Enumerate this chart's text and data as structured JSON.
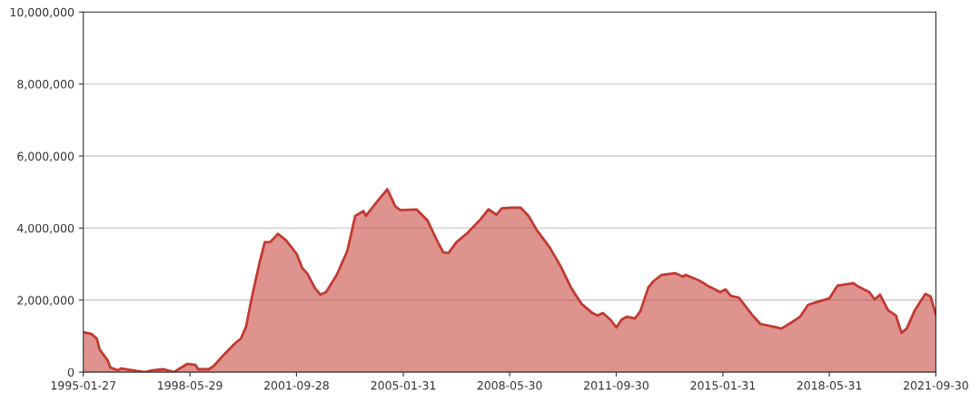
{
  "chart_data": {
    "type": "area",
    "x": [
      "1995-01-27",
      "1995-05",
      "1995-07",
      "1995-08",
      "1995-11",
      "1995-12",
      "1996-03",
      "1996-04",
      "1996-10",
      "1997-01",
      "1997-04",
      "1997-08",
      "1997-12",
      "1998-02",
      "1998-05",
      "1998-08",
      "1998-09",
      "1999-01",
      "1999-03",
      "1999-07",
      "1999-11",
      "2000-01",
      "2000-03",
      "2000-05",
      "2000-08",
      "2000-10",
      "2000-12",
      "2001-03",
      "2001-06",
      "2001-10",
      "2001-12",
      "2002-02",
      "2002-05",
      "2002-07",
      "2002-09",
      "2003-01",
      "2003-05",
      "2003-08",
      "2003-11",
      "2003-12",
      "2004-04",
      "2004-08",
      "2004-11",
      "2005-01",
      "2005-07",
      "2005-11",
      "2006-03",
      "2006-05",
      "2006-07",
      "2006-10",
      "2007-02",
      "2007-07",
      "2007-10",
      "2008-01",
      "2008-03",
      "2008-07",
      "2008-10",
      "2009-01",
      "2009-04",
      "2009-09",
      "2010-01",
      "2010-05",
      "2010-09",
      "2011-01",
      "2011-03",
      "2011-05",
      "2011-08",
      "2011-10",
      "2011-12",
      "2012-02",
      "2012-05",
      "2012-07",
      "2012-10",
      "2012-12",
      "2013-03",
      "2013-08",
      "2013-11",
      "2013-12",
      "2014-05",
      "2014-09",
      "2015-01",
      "2015-03",
      "2015-05",
      "2015-08",
      "2016-01",
      "2016-04",
      "2016-09",
      "2016-12",
      "2017-04",
      "2017-07",
      "2017-10",
      "2018-01",
      "2018-06",
      "2018-09",
      "2019-03",
      "2019-05",
      "2019-09",
      "2019-11",
      "2020-01",
      "2020-04",
      "2020-07",
      "2020-09",
      "2020-11",
      "2021-02",
      "2021-06",
      "2021-08",
      "2021-09-30"
    ],
    "series": [
      {
        "color": "#c23a31",
        "values": [
          1110000,
          1060000,
          930000,
          630000,
          330000,
          130000,
          50000,
          100000,
          30000,
          0,
          50000,
          80000,
          0,
          100000,
          230000,
          200000,
          80000,
          80000,
          180000,
          510000,
          810000,
          930000,
          1260000,
          2020000,
          3030000,
          3610000,
          3610000,
          3840000,
          3660000,
          3280000,
          2900000,
          2730000,
          2320000,
          2150000,
          2220000,
          2700000,
          3360000,
          4340000,
          4470000,
          4340000,
          4720000,
          5080000,
          4600000,
          4500000,
          4520000,
          4220000,
          3610000,
          3330000,
          3310000,
          3610000,
          3860000,
          4240000,
          4520000,
          4370000,
          4550000,
          4570000,
          4570000,
          4340000,
          3960000,
          3460000,
          2950000,
          2350000,
          1890000,
          1640000,
          1570000,
          1640000,
          1440000,
          1240000,
          1460000,
          1540000,
          1490000,
          1690000,
          2350000,
          2530000,
          2700000,
          2750000,
          2650000,
          2700000,
          2550000,
          2370000,
          2220000,
          2300000,
          2120000,
          2070000,
          1590000,
          1340000,
          1260000,
          1210000,
          1390000,
          1540000,
          1870000,
          1940000,
          2050000,
          2400000,
          2470000,
          2370000,
          2220000,
          2020000,
          2150000,
          1720000,
          1570000,
          1090000,
          1210000,
          1720000,
          2170000,
          2100000,
          1590000
        ]
      }
    ],
    "xlim": [
      "1995-01-27",
      "2021-09-30"
    ],
    "xticks": [
      "1995-01-27",
      "1998-05-29",
      "2001-09-28",
      "2005-01-31",
      "2008-05-30",
      "2011-09-30",
      "2015-01-31",
      "2018-05-31",
      "2021-09-30"
    ],
    "ylim": [
      0,
      10000000
    ],
    "yticks": [
      0,
      {
        "value": 2000000,
        "label": "2,000,000"
      },
      {
        "value": 4000000,
        "label": "4,000,000"
      },
      {
        "value": 6000000,
        "label": "6,000,000"
      },
      {
        "value": 8000000,
        "label": "8,000,000"
      },
      {
        "value": 10000000,
        "label": "10,000,000"
      }
    ],
    "grid": "y"
  }
}
